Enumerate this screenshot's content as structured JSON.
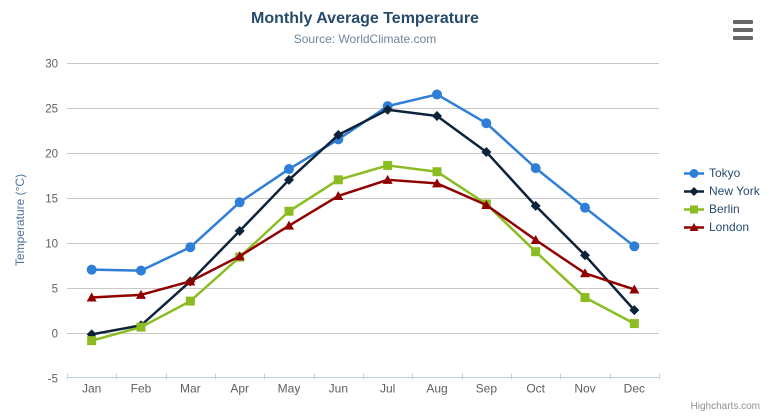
{
  "chart": {
    "credits": "Highcharts.com",
    "export_menu_icon": "hamburger-icon",
    "colors": {
      "title": "#274b6d",
      "subtitle": "#6d869f",
      "axis_label": "#606060",
      "axis_title": "#4d759e",
      "grid": "#c8c8c8",
      "axis_line": "#c0d0e0",
      "legend_text": "#274b6d",
      "credits": "#909090",
      "export_icon": "#666666",
      "background": "#ffffff"
    }
  },
  "chart_data": {
    "type": "line",
    "title": "Monthly Average Temperature",
    "subtitle": "Source: WorldClimate.com",
    "xlabel": "",
    "ylabel": "Temperature (°C)",
    "ylim": [
      -5,
      30
    ],
    "ytick_interval": 5,
    "grid": true,
    "legend_position": "right",
    "categories": [
      "Jan",
      "Feb",
      "Mar",
      "Apr",
      "May",
      "Jun",
      "Jul",
      "Aug",
      "Sep",
      "Oct",
      "Nov",
      "Dec"
    ],
    "series": [
      {
        "name": "Tokyo",
        "marker": "circle",
        "color": "#2f7ed8",
        "values": [
          7.0,
          6.9,
          9.5,
          14.5,
          18.2,
          21.5,
          25.2,
          26.5,
          23.3,
          18.3,
          13.9,
          9.6
        ]
      },
      {
        "name": "New York",
        "marker": "diamond",
        "color": "#0d233a",
        "values": [
          -0.2,
          0.8,
          5.7,
          11.3,
          17.0,
          22.0,
          24.8,
          24.1,
          20.1,
          14.1,
          8.6,
          2.5
        ]
      },
      {
        "name": "Berlin",
        "marker": "square",
        "color": "#8bbc21",
        "values": [
          -0.9,
          0.6,
          3.5,
          8.4,
          13.5,
          17.0,
          18.6,
          17.9,
          14.3,
          9.0,
          3.9,
          1.0
        ]
      },
      {
        "name": "London",
        "marker": "triangle",
        "color": "#910000",
        "values": [
          3.9,
          4.2,
          5.7,
          8.5,
          11.9,
          15.2,
          17.0,
          16.6,
          14.2,
          10.3,
          6.6,
          4.8
        ]
      }
    ]
  }
}
